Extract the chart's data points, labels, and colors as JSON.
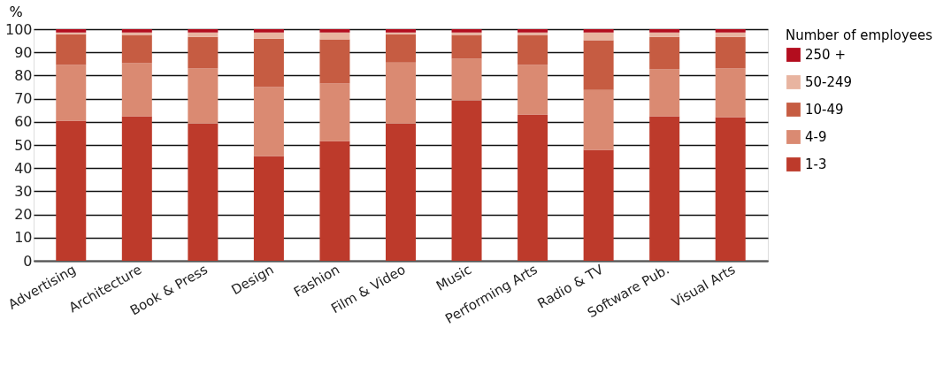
{
  "chart_data": {
    "type": "bar",
    "stacked": true,
    "ylabel": "%",
    "legend_title": "Number of employees",
    "legend": "right",
    "categories": [
      "Advertising",
      "Architecture",
      "Book & Press",
      "Design",
      "Fashion",
      "Film & Video",
      "Music",
      "Performing Arts",
      "Radio & TV",
      "Software Pub.",
      "Visual Arts"
    ],
    "series": [
      {
        "name": "1-3",
        "color": "#bd3a2b",
        "values": [
          60.5,
          62.4,
          59.3,
          45.2,
          51.7,
          59.3,
          69.3,
          63.2,
          47.9,
          62.4,
          62.0
        ]
      },
      {
        "name": "4-9",
        "color": "#da8a72",
        "values": [
          24.0,
          22.9,
          23.7,
          29.8,
          24.8,
          26.3,
          17.9,
          21.3,
          25.9,
          20.2,
          21.0
        ]
      },
      {
        "name": "10-49",
        "color": "#c65c42",
        "values": [
          13.3,
          12.2,
          13.7,
          20.9,
          19.1,
          12.2,
          10.3,
          13.0,
          21.4,
          14.1,
          13.7
        ]
      },
      {
        "name": "50-249",
        "color": "#e8b4a0",
        "values": [
          0.8,
          1.1,
          1.9,
          2.7,
          3.0,
          0.8,
          1.1,
          1.1,
          3.4,
          1.9,
          1.9
        ]
      },
      {
        "name": "250 +",
        "color": "#b30d1e",
        "values": [
          1.4,
          1.4,
          1.4,
          1.4,
          1.4,
          1.4,
          1.4,
          1.4,
          1.4,
          1.4,
          1.4
        ]
      }
    ],
    "ylim": [
      0,
      100
    ],
    "yticks": [
      0,
      10,
      20,
      30,
      40,
      50,
      60,
      70,
      80,
      90,
      100
    ],
    "grid": "y"
  }
}
